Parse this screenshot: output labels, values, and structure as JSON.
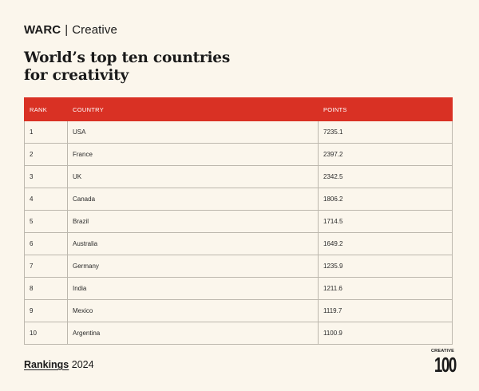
{
  "brand": {
    "name": "WARC",
    "separator": "|",
    "product": "Creative"
  },
  "title": {
    "line1": "World’s top ten countries",
    "line2": "for creativity"
  },
  "chart_data": {
    "type": "table",
    "columns": [
      "RANK",
      "COUNTRY",
      "POINTS"
    ],
    "rows": [
      [
        "1",
        "USA",
        "7235.1"
      ],
      [
        "2",
        "France",
        "2397.2"
      ],
      [
        "3",
        "UK",
        "2342.5"
      ],
      [
        "4",
        "Canada",
        "1806.2"
      ],
      [
        "5",
        "Brazil",
        "1714.5"
      ],
      [
        "6",
        "Australia",
        "1649.2"
      ],
      [
        "7",
        "Germany",
        "1235.9"
      ],
      [
        "8",
        "India",
        "1211.6"
      ],
      [
        "9",
        "Mexico",
        "1119.7"
      ],
      [
        "10",
        "Argentina",
        "1100.9"
      ]
    ]
  },
  "footer": {
    "rankings": "Rankings",
    "year": "2024"
  },
  "logo": {
    "top": "CREATIVE",
    "number": "100"
  },
  "colors": {
    "accent": "#d93124",
    "background": "#fbf6ec",
    "border": "#bdb8ae"
  }
}
